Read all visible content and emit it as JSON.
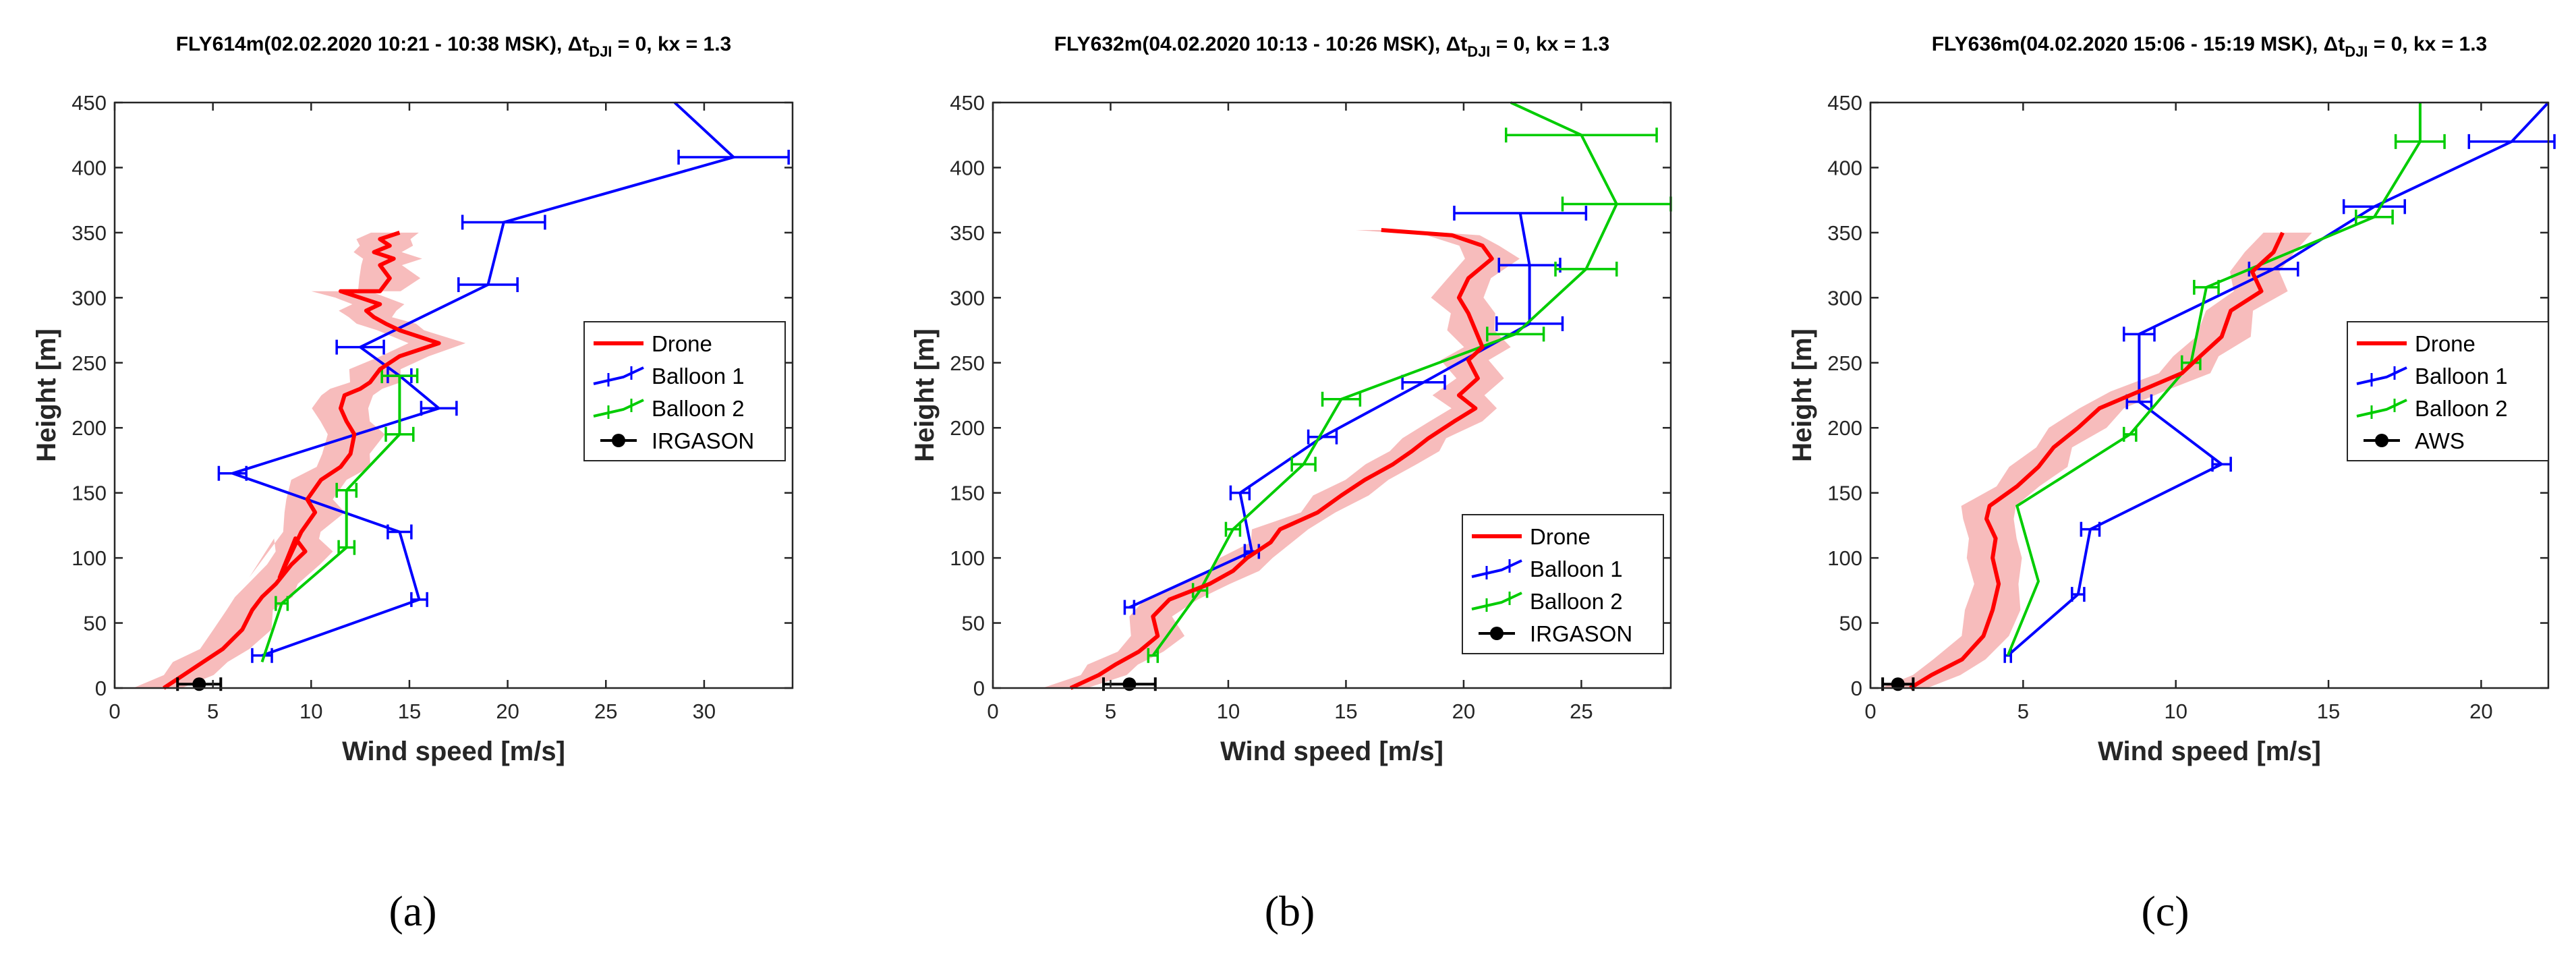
{
  "figure": {
    "panel_labels": [
      "(a)",
      "(b)",
      "(c)"
    ]
  },
  "chart_data": [
    {
      "type": "line",
      "title_main": "FLY614m(02.02.2020 10:21 - 10:38 MSK),",
      "title_symbol": "Δt",
      "title_subscript": "DJI",
      "title_rest": " = 0, kx = 1.3",
      "xlabel": "Wind speed [m/s]",
      "ylabel": "Height [m]",
      "xlim": [
        0,
        34.5
      ],
      "ylim": [
        0,
        450
      ],
      "xticks": [
        0,
        5,
        10,
        15,
        20,
        25,
        30
      ],
      "yticks": [
        0,
        50,
        100,
        150,
        200,
        250,
        300,
        350,
        400,
        450
      ],
      "legend_position": "right",
      "colors": {
        "drone": "#ff0000",
        "band": "#f4a6a6",
        "balloon1": "#0000ff",
        "balloon2": "#00cc00",
        "ground": "#000000"
      },
      "legend": [
        "Drone",
        "Balloon 1",
        "Balloon 2",
        "IRGASON"
      ],
      "series": [
        {
          "name": "Drone",
          "kind": "drone",
          "x": [
            2.5,
            3.5,
            4.5,
            5.5,
            6.5,
            7.0,
            7.5,
            8.2,
            9.0,
            9.7,
            9.2,
            8.4,
            9.5,
            10.2,
            9.8,
            10.5,
            11.5,
            12.0,
            12.2,
            11.8,
            11.5,
            11.7,
            12.5,
            13.0,
            13.5,
            14.5,
            16.5,
            14.5,
            13.8,
            13.2,
            12.8,
            13.5,
            12.5,
            11.5,
            13.5,
            14.0,
            13.5,
            14.2,
            13.2,
            14.0,
            13.5,
            14.5
          ],
          "y": [
            0,
            10,
            20,
            30,
            45,
            60,
            70,
            80,
            95,
            105,
            115,
            85,
            120,
            135,
            145,
            160,
            170,
            180,
            195,
            205,
            215,
            225,
            230,
            235,
            245,
            255,
            265,
            275,
            280,
            285,
            290,
            295,
            300,
            305,
            305,
            315,
            325,
            330,
            335,
            340,
            345,
            350
          ],
          "band": 1.3
        },
        {
          "name": "Balloon 1",
          "kind": "balloon1",
          "x": [
            7.5,
            15.5,
            14.5,
            6.0,
            16.5,
            14.5,
            12.5,
            19.0,
            19.8,
            31.5,
            28.5
          ],
          "y": [
            25,
            68,
            120,
            165,
            215,
            240,
            262,
            310,
            358,
            408,
            450
          ],
          "err": [
            0.5,
            0.4,
            0.6,
            0.7,
            0.9,
            0.6,
            1.2,
            1.5,
            2.1,
            2.8,
            0
          ]
        },
        {
          "name": "Balloon 2",
          "kind": "balloon2",
          "x": [
            7.5,
            8.5,
            11.8,
            11.8,
            14.5,
            14.5
          ],
          "y": [
            20,
            65,
            108,
            152,
            195,
            240
          ],
          "err": [
            0,
            0.3,
            0.4,
            0.5,
            0.7,
            0.9
          ]
        },
        {
          "name": "IRGASON",
          "kind": "ground",
          "x": [
            4.3
          ],
          "y": [
            3
          ],
          "err": [
            1.1
          ]
        }
      ]
    },
    {
      "type": "line",
      "title_main": "FLY632m(04.02.2020 10:13 - 10:26 MSK),",
      "title_symbol": "Δt",
      "title_subscript": "DJI",
      "title_rest": " = 0, kx = 1.3",
      "xlabel": "Wind speed [m/s]",
      "ylabel": "Height [m]",
      "xlim": [
        0,
        28.8
      ],
      "ylim": [
        0,
        450
      ],
      "xticks": [
        0,
        5,
        10,
        15,
        20,
        25
      ],
      "yticks": [
        0,
        50,
        100,
        150,
        200,
        250,
        300,
        350,
        400,
        450
      ],
      "legend_position": "bottom-right",
      "colors": {
        "drone": "#ff0000",
        "band": "#f4a6a6",
        "balloon1": "#0000ff",
        "balloon2": "#00cc00",
        "ground": "#000000"
      },
      "legend": [
        "Drone",
        "Balloon 1",
        "Balloon 2",
        "IRGASON"
      ],
      "series": [
        {
          "name": "Drone",
          "kind": "drone",
          "x": [
            3.3,
            4.5,
            5.2,
            6.2,
            7.0,
            6.8,
            7.5,
            9.2,
            10.2,
            10.8,
            11.8,
            12.2,
            13.8,
            14.8,
            15.8,
            17.0,
            17.8,
            18.5,
            19.6,
            20.5,
            19.8,
            20.6,
            20.2,
            20.8,
            20.5,
            20.2,
            19.8,
            20.2,
            21.2,
            20.8,
            19.5,
            16.5
          ],
          "y": [
            0,
            10,
            18,
            28,
            40,
            55,
            68,
            80,
            90,
            100,
            112,
            122,
            135,
            148,
            160,
            172,
            182,
            192,
            205,
            215,
            225,
            238,
            252,
            262,
            275,
            288,
            300,
            315,
            330,
            340,
            348,
            352
          ],
          "band": 1.0
        },
        {
          "name": "Balloon 1",
          "kind": "balloon1",
          "x": [
            5.8,
            11.0,
            10.5,
            14.0,
            18.3,
            22.8,
            22.8,
            22.4
          ],
          "y": [
            62,
            105,
            150,
            193,
            235,
            280,
            325,
            365
          ],
          "err": [
            0.2,
            0.3,
            0.4,
            0.6,
            0.9,
            1.4,
            1.3,
            2.8
          ]
        },
        {
          "name": "Balloon 2",
          "kind": "balloon2",
          "x": [
            6.8,
            8.8,
            10.2,
            13.2,
            14.8,
            22.2,
            25.2,
            26.5,
            25.0,
            22.0
          ],
          "y": [
            25,
            75,
            122,
            172,
            222,
            272,
            322,
            372,
            425,
            450
          ],
          "err": [
            0.2,
            0.3,
            0.3,
            0.5,
            0.8,
            1.2,
            1.3,
            2.3,
            3.2,
            0
          ]
        },
        {
          "name": "IRGASON",
          "kind": "ground",
          "x": [
            5.8
          ],
          "y": [
            3
          ],
          "err": [
            1.1
          ]
        }
      ]
    },
    {
      "type": "line",
      "title_main": "FLY636m(04.02.2020 15:06 - 15:19 MSK),",
      "title_symbol": "Δt",
      "title_subscript": "DJI",
      "title_rest": " = 0, kx = 1.3",
      "xlabel": "Wind speed [m/s]",
      "ylabel": "Height [m]",
      "xlim": [
        0,
        22.2
      ],
      "ylim": [
        0,
        450
      ],
      "xticks": [
        0,
        5,
        10,
        15,
        20
      ],
      "yticks": [
        0,
        50,
        100,
        150,
        200,
        250,
        300,
        350,
        400,
        450
      ],
      "legend_position": "right",
      "colors": {
        "drone": "#ff0000",
        "band": "#f4a6a6",
        "balloon1": "#0000ff",
        "balloon2": "#00cc00",
        "ground": "#000000"
      },
      "legend": [
        "Drone",
        "Balloon 1",
        "Balloon 2",
        "AWS"
      ],
      "series": [
        {
          "name": "Drone",
          "kind": "drone",
          "x": [
            1.3,
            2.0,
            3.0,
            3.7,
            4.0,
            4.2,
            4.0,
            4.1,
            3.8,
            3.9,
            4.8,
            5.5,
            6.0,
            6.8,
            7.5,
            8.8,
            10.2,
            10.8,
            11.5,
            11.8,
            12.8,
            12.5,
            13.2,
            13.5
          ],
          "y": [
            0,
            10,
            22,
            40,
            60,
            80,
            100,
            115,
            130,
            140,
            155,
            170,
            185,
            200,
            215,
            228,
            242,
            255,
            270,
            290,
            305,
            320,
            335,
            350
          ],
          "band": 0.8
        },
        {
          "name": "Balloon 1",
          "kind": "balloon1",
          "x": [
            4.5,
            6.8,
            7.2,
            11.5,
            8.8,
            8.8,
            13.2,
            16.5,
            21.0,
            22.2
          ],
          "y": [
            25,
            72,
            122,
            172,
            220,
            272,
            322,
            370,
            420,
            450
          ],
          "err": [
            0.1,
            0.2,
            0.3,
            0.3,
            0.4,
            0.5,
            0.8,
            1.0,
            1.4,
            0
          ]
        },
        {
          "name": "Balloon 2",
          "kind": "balloon2",
          "x": [
            4.5,
            5.5,
            4.8,
            8.5,
            10.5,
            11.0,
            16.5,
            18.0,
            18.0
          ],
          "y": [
            25,
            82,
            140,
            195,
            250,
            308,
            362,
            420,
            450
          ],
          "err": [
            0,
            0,
            0,
            0.2,
            0.3,
            0.4,
            0.6,
            0.8,
            0
          ]
        },
        {
          "name": "AWS",
          "kind": "ground",
          "x": [
            0.9
          ],
          "y": [
            3
          ],
          "err": [
            0.5
          ]
        }
      ]
    }
  ]
}
